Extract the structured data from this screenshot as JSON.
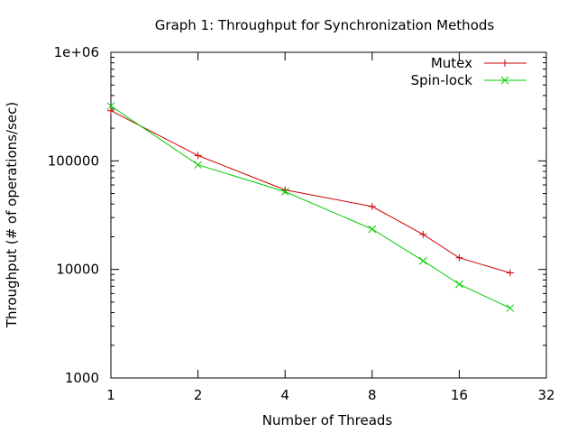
{
  "chart_data": {
    "type": "line",
    "title": "Graph 1: Throughput for Synchronization Methods",
    "xlabel": "Number of Threads",
    "ylabel": "Throughput (# of operations/sec)",
    "xscale": "log2",
    "yscale": "log10",
    "xlim": [
      1,
      32
    ],
    "ylim": [
      1000,
      1000000
    ],
    "xticks": [
      1,
      2,
      4,
      8,
      16,
      32
    ],
    "xtick_labels": [
      "1",
      "2",
      "4",
      "8",
      "16",
      "32"
    ],
    "yticks": [
      1000,
      10000,
      100000,
      1000000
    ],
    "ytick_labels": [
      "1000",
      "10000",
      "100000",
      "1e+06"
    ],
    "grid": false,
    "legend_position": "top-right",
    "series": [
      {
        "name": "Mutex",
        "color": "#cc0000",
        "marker": "plus",
        "x": [
          1,
          2,
          4,
          8,
          12,
          16,
          24
        ],
        "y": [
          290000,
          112000,
          54000,
          38000,
          21000,
          12800,
          9300
        ]
      },
      {
        "name": "Spin-lock",
        "color": "#00cc00",
        "marker": "cross",
        "x": [
          1,
          2,
          4,
          8,
          12,
          16,
          24
        ],
        "y": [
          320000,
          92000,
          52000,
          23500,
          12000,
          7300,
          4400
        ]
      }
    ]
  }
}
